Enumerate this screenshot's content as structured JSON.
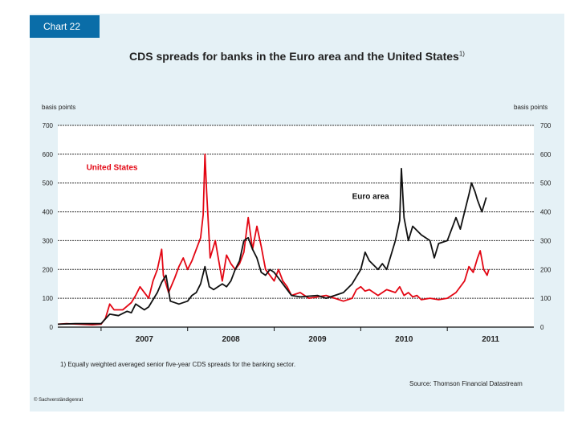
{
  "header": {
    "chart_number": "Chart 22"
  },
  "footer": {
    "footnote": "1) Equally weighted averaged senior five-year CDS spreads for the banking sector.",
    "source": "Source: Thomson Financial Datastream",
    "copyright": "© Sachverständigenrat"
  },
  "chart_data": {
    "type": "line",
    "title": "CDS spreads for banks in the Euro area and the United States",
    "title_footnote": "1)",
    "ylabel": "basis points",
    "ylabel_right": "basis points",
    "ylim": [
      0,
      700
    ],
    "yticks": [
      0,
      100,
      200,
      300,
      400,
      500,
      600,
      700
    ],
    "xlim": [
      2006.5,
      2012.0
    ],
    "xtick_labels": [
      {
        "label": "2007",
        "at": 2007.0
      },
      {
        "label": "2008",
        "at": 2008.0
      },
      {
        "label": "2009",
        "at": 2009.0
      },
      {
        "label": "2010",
        "at": 2010.0
      },
      {
        "label": "2011",
        "at": 2011.0
      }
    ],
    "grid": true,
    "series": [
      {
        "name": "United States",
        "color": "#e30613",
        "label_at": [
          2006.83,
          545
        ],
        "points": [
          [
            2006.5,
            10
          ],
          [
            2006.6,
            12
          ],
          [
            2006.75,
            10
          ],
          [
            2006.9,
            8
          ],
          [
            2007.0,
            10
          ],
          [
            2007.05,
            30
          ],
          [
            2007.1,
            80
          ],
          [
            2007.15,
            60
          ],
          [
            2007.25,
            60
          ],
          [
            2007.35,
            85
          ],
          [
            2007.4,
            110
          ],
          [
            2007.45,
            140
          ],
          [
            2007.55,
            100
          ],
          [
            2007.6,
            160
          ],
          [
            2007.65,
            200
          ],
          [
            2007.7,
            270
          ],
          [
            2007.72,
            180
          ],
          [
            2007.78,
            120
          ],
          [
            2007.85,
            170
          ],
          [
            2007.9,
            210
          ],
          [
            2007.95,
            240
          ],
          [
            2008.0,
            200
          ],
          [
            2008.05,
            230
          ],
          [
            2008.1,
            270
          ],
          [
            2008.15,
            310
          ],
          [
            2008.18,
            390
          ],
          [
            2008.2,
            600
          ],
          [
            2008.22,
            470
          ],
          [
            2008.26,
            240
          ],
          [
            2008.32,
            300
          ],
          [
            2008.36,
            230
          ],
          [
            2008.4,
            160
          ],
          [
            2008.45,
            250
          ],
          [
            2008.5,
            220
          ],
          [
            2008.55,
            200
          ],
          [
            2008.6,
            220
          ],
          [
            2008.65,
            260
          ],
          [
            2008.7,
            380
          ],
          [
            2008.75,
            270
          ],
          [
            2008.8,
            350
          ],
          [
            2008.85,
            280
          ],
          [
            2008.9,
            200
          ],
          [
            2008.95,
            180
          ],
          [
            2009.0,
            160
          ],
          [
            2009.05,
            200
          ],
          [
            2009.1,
            160
          ],
          [
            2009.15,
            140
          ],
          [
            2009.2,
            110
          ],
          [
            2009.3,
            120
          ],
          [
            2009.4,
            100
          ],
          [
            2009.5,
            105
          ],
          [
            2009.6,
            110
          ],
          [
            2009.7,
            100
          ],
          [
            2009.8,
            90
          ],
          [
            2009.9,
            100
          ],
          [
            2009.95,
            130
          ],
          [
            2010.0,
            140
          ],
          [
            2010.05,
            125
          ],
          [
            2010.1,
            130
          ],
          [
            2010.2,
            110
          ],
          [
            2010.3,
            130
          ],
          [
            2010.4,
            120
          ],
          [
            2010.45,
            140
          ],
          [
            2010.5,
            110
          ],
          [
            2010.55,
            120
          ],
          [
            2010.6,
            105
          ],
          [
            2010.65,
            110
          ],
          [
            2010.7,
            95
          ],
          [
            2010.8,
            100
          ],
          [
            2010.9,
            95
          ],
          [
            2011.0,
            100
          ],
          [
            2011.1,
            120
          ],
          [
            2011.2,
            160
          ],
          [
            2011.25,
            210
          ],
          [
            2011.3,
            190
          ],
          [
            2011.35,
            240
          ],
          [
            2011.38,
            265
          ],
          [
            2011.42,
            200
          ],
          [
            2011.46,
            180
          ],
          [
            2011.48,
            200
          ]
        ]
      },
      {
        "name": "Euro area",
        "color": "#111111",
        "label_at": [
          2009.9,
          445
        ],
        "points": [
          [
            2006.5,
            10
          ],
          [
            2006.7,
            12
          ],
          [
            2006.9,
            12
          ],
          [
            2007.0,
            12
          ],
          [
            2007.1,
            45
          ],
          [
            2007.2,
            40
          ],
          [
            2007.3,
            55
          ],
          [
            2007.35,
            50
          ],
          [
            2007.4,
            80
          ],
          [
            2007.5,
            60
          ],
          [
            2007.55,
            70
          ],
          [
            2007.6,
            95
          ],
          [
            2007.65,
            120
          ],
          [
            2007.7,
            155
          ],
          [
            2007.75,
            180
          ],
          [
            2007.8,
            90
          ],
          [
            2007.9,
            80
          ],
          [
            2008.0,
            90
          ],
          [
            2008.05,
            110
          ],
          [
            2008.1,
            120
          ],
          [
            2008.15,
            150
          ],
          [
            2008.2,
            210
          ],
          [
            2008.25,
            140
          ],
          [
            2008.3,
            130
          ],
          [
            2008.4,
            150
          ],
          [
            2008.45,
            140
          ],
          [
            2008.5,
            160
          ],
          [
            2008.55,
            200
          ],
          [
            2008.6,
            230
          ],
          [
            2008.65,
            300
          ],
          [
            2008.7,
            310
          ],
          [
            2008.75,
            270
          ],
          [
            2008.8,
            240
          ],
          [
            2008.85,
            190
          ],
          [
            2008.9,
            180
          ],
          [
            2008.95,
            200
          ],
          [
            2009.0,
            190
          ],
          [
            2009.05,
            170
          ],
          [
            2009.1,
            150
          ],
          [
            2009.2,
            110
          ],
          [
            2009.3,
            105
          ],
          [
            2009.5,
            110
          ],
          [
            2009.6,
            100
          ],
          [
            2009.7,
            110
          ],
          [
            2009.8,
            120
          ],
          [
            2009.9,
            150
          ],
          [
            2010.0,
            200
          ],
          [
            2010.05,
            260
          ],
          [
            2010.1,
            230
          ],
          [
            2010.2,
            200
          ],
          [
            2010.25,
            220
          ],
          [
            2010.3,
            200
          ],
          [
            2010.35,
            250
          ],
          [
            2010.4,
            300
          ],
          [
            2010.45,
            370
          ],
          [
            2010.47,
            550
          ],
          [
            2010.5,
            380
          ],
          [
            2010.55,
            300
          ],
          [
            2010.6,
            350
          ],
          [
            2010.7,
            320
          ],
          [
            2010.8,
            300
          ],
          [
            2010.85,
            240
          ],
          [
            2010.9,
            290
          ],
          [
            2011.0,
            300
          ],
          [
            2011.1,
            380
          ],
          [
            2011.15,
            340
          ],
          [
            2011.2,
            400
          ],
          [
            2011.25,
            460
          ],
          [
            2011.28,
            500
          ],
          [
            2011.32,
            470
          ],
          [
            2011.35,
            440
          ],
          [
            2011.4,
            400
          ],
          [
            2011.45,
            450
          ]
        ]
      }
    ]
  }
}
